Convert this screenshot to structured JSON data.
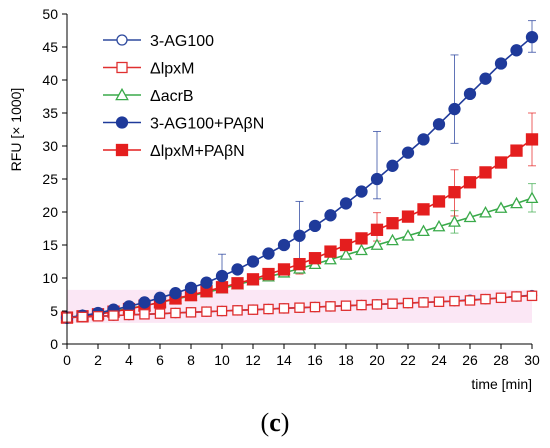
{
  "chart_data": {
    "type": "line",
    "xlabel": "time [min]",
    "ylabel": "RFU [× 1000]",
    "xlim": [
      0,
      30
    ],
    "ylim": [
      0,
      50
    ],
    "x_ticks": [
      0,
      2,
      4,
      6,
      8,
      10,
      12,
      14,
      16,
      18,
      20,
      22,
      24,
      26,
      28,
      30
    ],
    "y_ticks": [
      0,
      5,
      10,
      15,
      20,
      25,
      30,
      35,
      40,
      45,
      50
    ],
    "grid": false,
    "legend_position": "top-left",
    "panel_label": {
      "open": "(",
      "letter": "c",
      "close": ")"
    },
    "x": [
      0,
      1,
      2,
      3,
      4,
      5,
      6,
      7,
      8,
      9,
      10,
      11,
      12,
      13,
      14,
      15,
      16,
      17,
      18,
      19,
      20,
      21,
      22,
      23,
      24,
      25,
      26,
      27,
      28,
      29,
      30
    ],
    "series": [
      {
        "name": "3-AG100",
        "color": "#2e4a9e",
        "marker": "circle-open",
        "values": [
          4.0,
          4.1,
          4.2,
          4.3,
          4.4,
          4.5,
          4.6,
          4.7,
          4.8,
          4.9,
          5.0,
          5.1,
          5.2,
          5.3,
          5.4,
          5.5,
          5.6,
          5.7,
          5.8,
          5.9,
          6.0,
          6.1,
          6.2,
          6.3,
          6.4,
          6.5,
          6.7,
          6.8,
          7.0,
          7.2,
          7.4
        ],
        "error_bars": []
      },
      {
        "name": "ΔlpxM",
        "color": "#e03030",
        "marker": "square-open",
        "values": [
          4.0,
          4.1,
          4.2,
          4.3,
          4.4,
          4.5,
          4.6,
          4.7,
          4.8,
          4.9,
          5.0,
          5.1,
          5.2,
          5.3,
          5.4,
          5.5,
          5.6,
          5.7,
          5.8,
          5.9,
          6.0,
          6.1,
          6.2,
          6.3,
          6.4,
          6.5,
          6.6,
          6.8,
          7.0,
          7.2,
          7.3
        ],
        "error_bars": []
      },
      {
        "name": "ΔacrB",
        "color": "#3aaa4a",
        "marker": "triangle-open",
        "values": [
          4.0,
          4.3,
          4.6,
          5.0,
          5.4,
          5.8,
          6.3,
          6.8,
          7.3,
          7.8,
          8.4,
          9.0,
          9.6,
          10.2,
          10.8,
          11.4,
          12.1,
          12.8,
          13.5,
          14.2,
          15.0,
          15.7,
          16.4,
          17.1,
          17.8,
          18.5,
          19.2,
          19.9,
          20.6,
          21.3,
          22.1
        ],
        "error_bars": [
          {
            "x": 25,
            "low": 16.8,
            "high": 20.2
          },
          {
            "x": 30,
            "low": 20.0,
            "high": 24.3
          }
        ]
      },
      {
        "name": "3-AG100+PAβN",
        "color": "#1f3a9a",
        "marker": "circle-filled",
        "values": [
          4.0,
          4.3,
          4.7,
          5.2,
          5.7,
          6.3,
          7.0,
          7.7,
          8.5,
          9.3,
          10.3,
          11.3,
          12.5,
          13.7,
          15.0,
          16.4,
          17.9,
          19.5,
          21.3,
          23.1,
          25.0,
          27.0,
          29.0,
          31.0,
          33.3,
          35.6,
          37.9,
          40.2,
          42.5,
          44.5,
          46.5
        ],
        "error_bars": [
          {
            "x": 10,
            "low": 9.2,
            "high": 13.6
          },
          {
            "x": 15,
            "low": 12.3,
            "high": 21.6
          },
          {
            "x": 20,
            "low": 22.0,
            "high": 32.2
          },
          {
            "x": 25,
            "low": 30.4,
            "high": 43.8
          },
          {
            "x": 30,
            "low": 44.2,
            "high": 49.0
          }
        ]
      },
      {
        "name": "ΔlpxM+PAβN",
        "color": "#e41e1e",
        "marker": "square-filled",
        "values": [
          4.0,
          4.2,
          4.5,
          4.9,
          5.3,
          5.8,
          6.3,
          6.9,
          7.4,
          8.0,
          8.6,
          9.2,
          9.8,
          10.6,
          11.3,
          12.1,
          13.0,
          14.0,
          15.0,
          16.0,
          17.3,
          18.3,
          19.3,
          20.4,
          21.6,
          23.0,
          24.5,
          26.0,
          27.5,
          29.3,
          31.0
        ],
        "error_bars": [
          {
            "x": 15,
            "low": 10.6,
            "high": 12.9
          },
          {
            "x": 20,
            "low": 15.6,
            "high": 19.9
          },
          {
            "x": 25,
            "low": 19.4,
            "high": 26.4
          },
          {
            "x": 30,
            "low": 27.0,
            "high": 35.0
          }
        ]
      }
    ]
  }
}
